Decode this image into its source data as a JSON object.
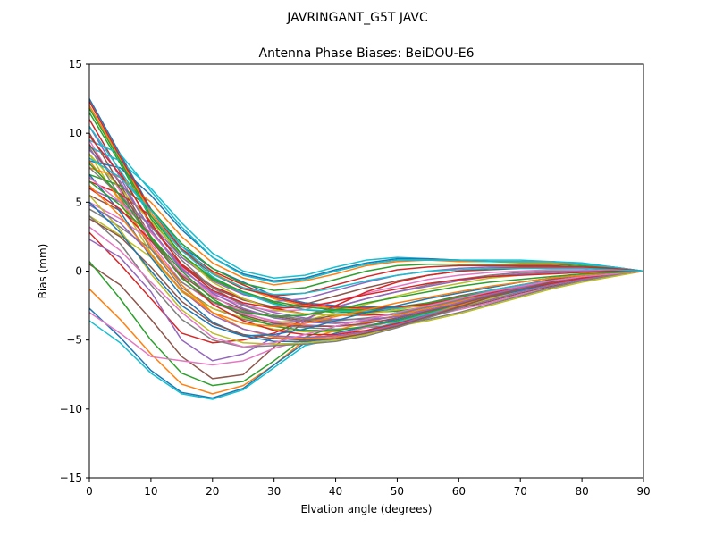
{
  "chart_data": {
    "type": "line",
    "suptitle": "JAVRINGANT_G5T  JAVC",
    "title": "Antenna Phase Biases: BeiDOU-E6",
    "xlabel": "Elvation angle (degrees)",
    "ylabel": "Bias (mm)",
    "xlim": [
      0,
      90
    ],
    "ylim": [
      -15,
      15
    ],
    "xticks": [
      0,
      10,
      20,
      30,
      40,
      50,
      60,
      70,
      80,
      90
    ],
    "yticks": [
      -15,
      -10,
      -5,
      0,
      5,
      10,
      15
    ],
    "xtick_labels": [
      "0",
      "10",
      "20",
      "30",
      "40",
      "50",
      "60",
      "70",
      "80",
      "90"
    ],
    "ytick_labels": [
      "−15",
      "−10",
      "−5",
      "0",
      "5",
      "10",
      "15"
    ],
    "grid": false,
    "legend": "none",
    "x": [
      0,
      5,
      10,
      15,
      20,
      25,
      30,
      35,
      40,
      45,
      50,
      55,
      60,
      65,
      70,
      75,
      80,
      85,
      90
    ],
    "series": [
      {
        "color": "#1f77b4",
        "values": [
          12.5,
          8.5,
          4.5,
          1.8,
          0.2,
          -0.8,
          -1.8,
          -2.3,
          -2.5,
          -2.6,
          -2.6,
          -2.4,
          -2.0,
          -1.5,
          -1.1,
          -0.7,
          -0.4,
          -0.2,
          0.0
        ]
      },
      {
        "color": "#ff7f0e",
        "values": [
          12.0,
          8.2,
          4.2,
          1.5,
          -0.1,
          -1.2,
          -2.0,
          -2.5,
          -2.7,
          -2.8,
          -2.7,
          -2.5,
          -2.1,
          -1.7,
          -1.2,
          -0.8,
          -0.5,
          -0.2,
          0.0
        ]
      },
      {
        "color": "#2ca02c",
        "values": [
          11.5,
          7.8,
          3.8,
          1.0,
          -0.6,
          -1.6,
          -2.3,
          -2.8,
          -3.0,
          -3.0,
          -2.9,
          -2.6,
          -2.2,
          -1.8,
          -1.3,
          -0.9,
          -0.5,
          -0.2,
          0.0
        ]
      },
      {
        "color": "#d62728",
        "values": [
          11.0,
          7.2,
          3.3,
          0.5,
          -1.1,
          -2.0,
          -2.7,
          -3.1,
          -3.2,
          -3.2,
          -3.1,
          -2.8,
          -2.4,
          -1.9,
          -1.4,
          -0.9,
          -0.6,
          -0.3,
          0.0
        ]
      },
      {
        "color": "#9467bd",
        "values": [
          10.5,
          6.8,
          2.9,
          0.1,
          -1.5,
          -2.4,
          -3.0,
          -3.4,
          -3.5,
          -3.5,
          -3.3,
          -3.0,
          -2.6,
          -2.1,
          -1.5,
          -1.0,
          -0.6,
          -0.3,
          0.0
        ]
      },
      {
        "color": "#8c564b",
        "values": [
          10.0,
          6.3,
          2.5,
          -0.3,
          -1.9,
          -2.8,
          -3.3,
          -3.6,
          -3.7,
          -3.7,
          -3.5,
          -3.2,
          -2.7,
          -2.2,
          -1.6,
          -1.1,
          -0.7,
          -0.3,
          0.0
        ]
      },
      {
        "color": "#e377c2",
        "values": [
          9.5,
          5.8,
          2.0,
          -0.8,
          -2.3,
          -3.1,
          -3.6,
          -3.9,
          -4.0,
          -3.9,
          -3.7,
          -3.3,
          -2.8,
          -2.3,
          -1.7,
          -1.2,
          -0.7,
          -0.3,
          0.0
        ]
      },
      {
        "color": "#7f7f7f",
        "values": [
          9.0,
          5.4,
          1.6,
          -1.2,
          -2.7,
          -3.5,
          -3.9,
          -4.1,
          -4.2,
          -4.1,
          -3.9,
          -3.5,
          -3.0,
          -2.4,
          -1.8,
          -1.2,
          -0.7,
          -0.3,
          0.0
        ]
      },
      {
        "color": "#bcbd22",
        "values": [
          8.5,
          5.0,
          1.3,
          -1.5,
          -3.0,
          -3.8,
          -4.2,
          -4.4,
          -4.4,
          -4.3,
          -4.0,
          -3.6,
          -3.1,
          -2.5,
          -1.9,
          -1.3,
          -0.8,
          -0.4,
          0.0
        ]
      },
      {
        "color": "#17becf",
        "values": [
          9.0,
          8.0,
          6.0,
          3.5,
          1.3,
          0.0,
          -0.5,
          -0.3,
          0.3,
          0.8,
          1.0,
          0.9,
          0.8,
          0.8,
          0.8,
          0.7,
          0.6,
          0.3,
          0.0
        ]
      },
      {
        "color": "#1f77b4",
        "values": [
          8.0,
          7.5,
          5.5,
          3.0,
          1.0,
          -0.2,
          -0.7,
          -0.5,
          0.1,
          0.6,
          0.9,
          0.9,
          0.8,
          0.7,
          0.7,
          0.7,
          0.5,
          0.3,
          0.0
        ]
      },
      {
        "color": "#ff7f0e",
        "values": [
          7.5,
          6.8,
          5.0,
          2.5,
          0.6,
          -0.5,
          -1.0,
          -0.7,
          -0.2,
          0.4,
          0.7,
          0.8,
          0.7,
          0.7,
          0.6,
          0.6,
          0.5,
          0.2,
          0.0
        ]
      },
      {
        "color": "#2ca02c",
        "values": [
          7.0,
          6.2,
          4.5,
          2.0,
          0.2,
          -0.9,
          -1.4,
          -1.2,
          -0.6,
          0.0,
          0.4,
          0.5,
          0.5,
          0.5,
          0.5,
          0.5,
          0.4,
          0.2,
          0.0
        ]
      },
      {
        "color": "#d62728",
        "values": [
          6.5,
          5.6,
          4.0,
          1.5,
          -0.2,
          -1.3,
          -1.8,
          -1.6,
          -1.0,
          -0.4,
          0.1,
          0.3,
          0.4,
          0.4,
          0.4,
          0.4,
          0.3,
          0.2,
          0.0
        ]
      },
      {
        "color": "#9467bd",
        "values": [
          6.0,
          5.0,
          3.4,
          1.0,
          -0.7,
          -1.7,
          -2.2,
          -2.0,
          -1.4,
          -0.8,
          -0.3,
          0.0,
          0.2,
          0.3,
          0.3,
          0.3,
          0.3,
          0.1,
          0.0
        ]
      },
      {
        "color": "#8c564b",
        "values": [
          5.5,
          4.4,
          2.8,
          0.4,
          -1.2,
          -2.1,
          -2.6,
          -2.4,
          -1.8,
          -1.2,
          -0.7,
          -0.3,
          0.0,
          0.1,
          0.2,
          0.2,
          0.2,
          0.1,
          0.0
        ]
      },
      {
        "color": "#e377c2",
        "values": [
          5.0,
          3.8,
          2.2,
          -0.2,
          -1.7,
          -2.5,
          -2.9,
          -2.8,
          -2.2,
          -1.6,
          -1.1,
          -0.6,
          -0.3,
          -0.1,
          0.0,
          0.1,
          0.1,
          0.0,
          0.0
        ]
      },
      {
        "color": "#7f7f7f",
        "values": [
          4.5,
          3.2,
          1.6,
          -0.8,
          -2.2,
          -2.9,
          -3.3,
          -3.2,
          -2.6,
          -2.0,
          -1.5,
          -1.0,
          -0.6,
          -0.3,
          -0.1,
          0.0,
          0.0,
          0.0,
          0.0
        ]
      },
      {
        "color": "#bcbd22",
        "values": [
          4.0,
          2.6,
          1.0,
          -1.4,
          -2.7,
          -3.4,
          -3.7,
          -3.6,
          -3.0,
          -2.4,
          -1.8,
          -1.3,
          -0.9,
          -0.5,
          -0.3,
          -0.1,
          0.0,
          0.0,
          0.0
        ]
      },
      {
        "color": "#17becf",
        "values": [
          9.5,
          8.5,
          5.8,
          3.2,
          1.0,
          -0.3,
          -0.8,
          -0.6,
          0.0,
          0.5,
          0.8,
          0.8,
          0.8,
          0.7,
          0.7,
          0.7,
          0.5,
          0.3,
          0.0
        ]
      },
      {
        "color": "#d62728",
        "values": [
          2.8,
          0.5,
          -2.0,
          -4.5,
          -5.2,
          -5.0,
          -4.5,
          -3.5,
          -2.5,
          -1.5,
          -0.8,
          -0.3,
          0.0,
          0.2,
          0.3,
          0.3,
          0.3,
          0.2,
          0.0
        ]
      },
      {
        "color": "#9467bd",
        "values": [
          2.3,
          1.0,
          -1.5,
          -5.0,
          -6.5,
          -6.0,
          -4.8,
          -3.5,
          -2.6,
          -2.0,
          -1.5,
          -1.1,
          -0.7,
          -0.4,
          -0.2,
          -0.1,
          0.0,
          0.0,
          0.0
        ]
      },
      {
        "color": "#8c564b",
        "values": [
          0.5,
          -1.0,
          -3.5,
          -6.2,
          -7.8,
          -7.5,
          -5.5,
          -3.6,
          -3.2,
          -3.0,
          -2.7,
          -2.3,
          -1.8,
          -1.4,
          -1.0,
          -0.6,
          -0.3,
          -0.1,
          0.0
        ]
      },
      {
        "color": "#2ca02c",
        "values": [
          0.7,
          -2.0,
          -5.0,
          -7.4,
          -8.3,
          -8.0,
          -6.5,
          -4.8,
          -4.0,
          -3.5,
          -3.0,
          -2.6,
          -2.1,
          -1.6,
          -1.2,
          -0.8,
          -0.4,
          -0.2,
          0.0
        ]
      },
      {
        "color": "#ff7f0e",
        "values": [
          -1.3,
          -3.5,
          -6.0,
          -8.2,
          -8.9,
          -8.3,
          -6.8,
          -5.0,
          -4.3,
          -3.7,
          -3.2,
          -2.7,
          -2.2,
          -1.7,
          -1.2,
          -0.8,
          -0.4,
          -0.2,
          0.0
        ]
      },
      {
        "color": "#1f77b4",
        "values": [
          -2.7,
          -4.8,
          -7.2,
          -8.8,
          -9.2,
          -8.5,
          -6.8,
          -5.2,
          -4.5,
          -4.0,
          -3.5,
          -3.0,
          -2.4,
          -1.8,
          -1.3,
          -0.8,
          -0.4,
          -0.2,
          0.0
        ]
      },
      {
        "color": "#17becf",
        "values": [
          -3.6,
          -5.2,
          -7.4,
          -8.9,
          -9.3,
          -8.6,
          -7.0,
          -5.4,
          -4.9,
          -4.3,
          -3.7,
          -3.1,
          -2.5,
          -1.9,
          -1.3,
          -0.8,
          -0.4,
          -0.2,
          0.0
        ]
      },
      {
        "color": "#e377c2",
        "values": [
          -3.0,
          -4.5,
          -6.2,
          -6.5,
          -6.8,
          -6.5,
          -5.6,
          -5.0,
          -4.6,
          -4.1,
          -3.6,
          -3.0,
          -2.4,
          -1.8,
          -1.3,
          -0.8,
          -0.4,
          -0.2,
          0.0
        ]
      },
      {
        "color": "#7f7f7f",
        "values": [
          4.0,
          2.0,
          -1.0,
          -3.5,
          -5.0,
          -5.5,
          -5.4,
          -5.3,
          -5.1,
          -4.7,
          -4.1,
          -3.4,
          -2.7,
          -2.0,
          -1.4,
          -0.9,
          -0.5,
          -0.2,
          0.0
        ]
      },
      {
        "color": "#bcbd22",
        "values": [
          5.5,
          3.0,
          -0.2,
          -2.8,
          -4.5,
          -5.2,
          -5.3,
          -5.2,
          -5.0,
          -4.6,
          -4.0,
          -3.3,
          -2.6,
          -2.0,
          -1.4,
          -0.9,
          -0.5,
          -0.2,
          0.0
        ]
      },
      {
        "color": "#1f77b4",
        "values": [
          7.0,
          4.3,
          1.0,
          -1.8,
          -3.7,
          -4.7,
          -5.1,
          -5.1,
          -4.9,
          -4.5,
          -3.9,
          -3.3,
          -2.6,
          -1.9,
          -1.4,
          -0.9,
          -0.5,
          -0.2,
          0.0
        ]
      },
      {
        "color": "#ff7f0e",
        "values": [
          8.0,
          5.2,
          1.8,
          -1.0,
          -3.0,
          -4.2,
          -4.8,
          -4.9,
          -4.8,
          -4.4,
          -3.8,
          -3.2,
          -2.5,
          -1.9,
          -1.3,
          -0.8,
          -0.5,
          -0.2,
          0.0
        ]
      },
      {
        "color": "#2ca02c",
        "values": [
          6.5,
          4.8,
          2.5,
          0.0,
          -2.0,
          -3.3,
          -4.0,
          -4.3,
          -4.3,
          -4.0,
          -3.6,
          -3.0,
          -2.4,
          -1.8,
          -1.3,
          -0.8,
          -0.4,
          -0.2,
          0.0
        ]
      },
      {
        "color": "#d62728",
        "values": [
          6.0,
          4.5,
          2.2,
          -0.4,
          -2.4,
          -3.6,
          -4.3,
          -4.6,
          -4.6,
          -4.3,
          -3.8,
          -3.2,
          -2.6,
          -1.9,
          -1.3,
          -0.9,
          -0.5,
          -0.2,
          0.0
        ]
      },
      {
        "color": "#9467bd",
        "values": [
          4.8,
          3.5,
          1.2,
          -1.4,
          -3.2,
          -4.2,
          -4.7,
          -4.8,
          -4.7,
          -4.4,
          -3.9,
          -3.2,
          -2.6,
          -1.9,
          -1.3,
          -0.8,
          -0.4,
          -0.2,
          0.0
        ]
      },
      {
        "color": "#8c564b",
        "values": [
          3.8,
          2.5,
          0.3,
          -2.2,
          -3.8,
          -4.6,
          -4.9,
          -5.0,
          -4.9,
          -4.5,
          -4.0,
          -3.3,
          -2.6,
          -1.9,
          -1.3,
          -0.8,
          -0.4,
          -0.2,
          0.0
        ]
      },
      {
        "color": "#e377c2",
        "values": [
          6.8,
          5.0,
          2.8,
          0.3,
          -1.8,
          -3.0,
          -3.7,
          -4.0,
          -4.0,
          -3.8,
          -3.4,
          -2.9,
          -2.3,
          -1.7,
          -1.2,
          -0.8,
          -0.4,
          -0.2,
          0.0
        ]
      },
      {
        "color": "#7f7f7f",
        "values": [
          7.5,
          5.5,
          3.2,
          0.8,
          -1.2,
          -2.5,
          -3.2,
          -3.5,
          -3.6,
          -3.4,
          -3.1,
          -2.6,
          -2.1,
          -1.6,
          -1.1,
          -0.7,
          -0.4,
          -0.2,
          0.0
        ]
      },
      {
        "color": "#bcbd22",
        "values": [
          8.5,
          6.0,
          3.6,
          1.2,
          -0.8,
          -2.0,
          -2.8,
          -3.1,
          -3.2,
          -3.1,
          -2.8,
          -2.4,
          -1.9,
          -1.5,
          -1.0,
          -0.7,
          -0.4,
          -0.2,
          0.0
        ]
      },
      {
        "color": "#17becf",
        "values": [
          10.5,
          7.3,
          4.0,
          1.5,
          -0.4,
          -1.6,
          -2.4,
          -2.8,
          -2.9,
          -2.9,
          -2.7,
          -2.3,
          -1.9,
          -1.4,
          -1.0,
          -0.7,
          -0.4,
          -0.2,
          0.0
        ]
      },
      {
        "color": "#2ca02c",
        "values": [
          11.8,
          8.0,
          4.0,
          1.2,
          -0.5,
          -1.5,
          -2.2,
          -2.6,
          -2.8,
          -2.8,
          -2.6,
          -2.3,
          -1.9,
          -1.5,
          -1.1,
          -0.7,
          -0.4,
          -0.2,
          0.0
        ]
      },
      {
        "color": "#d62728",
        "values": [
          12.3,
          8.3,
          4.4,
          1.6,
          0.0,
          -1.0,
          -1.9,
          -2.4,
          -2.6,
          -2.7,
          -2.6,
          -2.4,
          -2.0,
          -1.6,
          -1.1,
          -0.7,
          -0.4,
          -0.2,
          0.0
        ]
      },
      {
        "color": "#9467bd",
        "values": [
          8.8,
          6.5,
          3.0,
          0.2,
          -1.6,
          -2.7,
          -3.4,
          -3.7,
          -3.8,
          -3.6,
          -3.3,
          -2.8,
          -2.3,
          -1.7,
          -1.2,
          -0.8,
          -0.4,
          -0.2,
          0.0
        ]
      },
      {
        "color": "#8c564b",
        "values": [
          9.2,
          6.0,
          2.3,
          -0.5,
          -2.2,
          -3.2,
          -3.8,
          -4.0,
          -4.0,
          -3.8,
          -3.4,
          -2.9,
          -2.4,
          -1.8,
          -1.3,
          -0.8,
          -0.4,
          -0.2,
          0.0
        ]
      },
      {
        "color": "#e377c2",
        "values": [
          3.2,
          1.5,
          -0.8,
          -3.0,
          -4.8,
          -5.5,
          -5.2,
          -4.6,
          -4.0,
          -3.5,
          -3.0,
          -2.5,
          -2.0,
          -1.5,
          -1.1,
          -0.7,
          -0.4,
          -0.2,
          0.0
        ]
      },
      {
        "color": "#1f77b4",
        "values": [
          5.0,
          2.8,
          0.0,
          -2.5,
          -4.0,
          -4.7,
          -4.6,
          -4.2,
          -3.6,
          -3.0,
          -2.5,
          -2.0,
          -1.6,
          -1.2,
          -0.8,
          -0.5,
          -0.3,
          -0.1,
          0.0
        ]
      },
      {
        "color": "#ff7f0e",
        "values": [
          6.2,
          4.0,
          1.2,
          -1.4,
          -3.0,
          -3.8,
          -4.0,
          -3.8,
          -3.3,
          -2.8,
          -2.3,
          -1.9,
          -1.5,
          -1.1,
          -0.8,
          -0.5,
          -0.3,
          -0.1,
          0.0
        ]
      },
      {
        "color": "#2ca02c",
        "values": [
          7.8,
          5.5,
          2.4,
          -0.5,
          -2.2,
          -3.0,
          -3.3,
          -3.2,
          -2.8,
          -2.3,
          -1.9,
          -1.5,
          -1.1,
          -0.8,
          -0.6,
          -0.4,
          -0.2,
          -0.1,
          0.0
        ]
      },
      {
        "color": "#d62728",
        "values": [
          9.8,
          7.0,
          3.5,
          0.4,
          -1.4,
          -2.3,
          -2.7,
          -2.6,
          -2.2,
          -1.7,
          -1.3,
          -0.9,
          -0.6,
          -0.4,
          -0.3,
          -0.2,
          -0.1,
          0.0,
          0.0
        ]
      },
      {
        "color": "#17becf",
        "values": [
          8.2,
          6.8,
          4.4,
          1.8,
          -0.2,
          -1.2,
          -1.7,
          -1.6,
          -1.2,
          -0.7,
          -0.3,
          0.0,
          0.1,
          0.2,
          0.2,
          0.2,
          0.2,
          0.1,
          0.0
        ]
      }
    ]
  }
}
